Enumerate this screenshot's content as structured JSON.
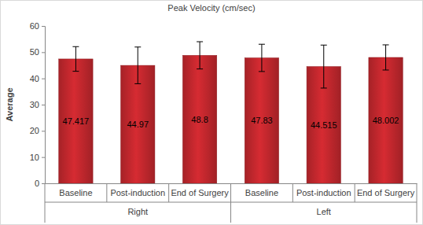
{
  "chart_data": {
    "type": "bar",
    "title": "Peak Velocity (cm/sec)",
    "y_label": "Average",
    "categories": [
      "Baseline",
      "Post-induction",
      "End of Surgery",
      "Baseline",
      "Post-induction",
      "End of Surgery"
    ],
    "category_groups": [
      "Right",
      "Right",
      "Right",
      "Left",
      "Left",
      "Left"
    ],
    "values": [
      47.417,
      44.97,
      48.8,
      47.83,
      44.515,
      48.002
    ],
    "errors": [
      4.7,
      7.0,
      5.2,
      5.2,
      8.2,
      4.8
    ],
    "color": "#c0272d",
    "ylim": [
      0,
      60
    ],
    "yticks": [
      0,
      10,
      20,
      30,
      40,
      50,
      60
    ],
    "grid": false,
    "data_labels": true
  }
}
